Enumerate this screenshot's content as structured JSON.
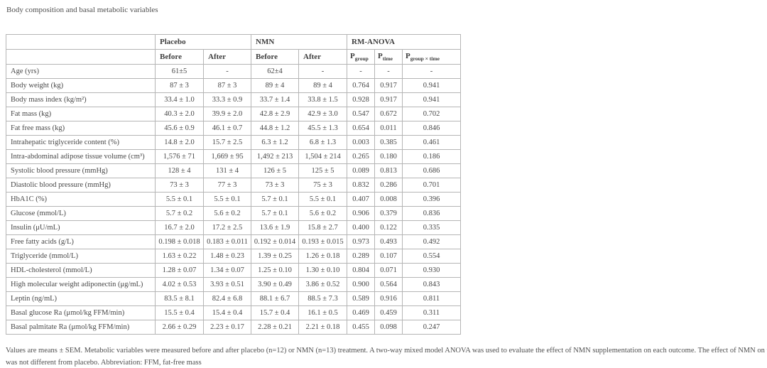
{
  "page": {
    "title": "Body composition and basal metabolic variables",
    "footnote": {
      "line1": "Values are means ± SEM. Metabolic variables were measured before and after placebo (n=12) or NMN (n=13) treatment. A two-way mixed model ANOVA was used to evaluate the effect of NMN supplementation on each outcome. The effect of NMN on these variables",
      "line2": "was not different from placebo. Abbreviation: FFM, fat-free mass"
    }
  },
  "table": {
    "groups": [
      "Placebo",
      "NMN",
      "RM-ANOVA"
    ],
    "sub_cols": [
      "Before",
      "After",
      "Before",
      "After"
    ],
    "p_cols": [
      {
        "main": "P",
        "sub": "group"
      },
      {
        "main": "P",
        "sub": "time"
      },
      {
        "main": "P",
        "sub": "group × time"
      }
    ],
    "rows": [
      {
        "label": "Age (yrs)",
        "values": [
          "61±5",
          "-",
          "62±4",
          "-",
          "-",
          "-",
          "-"
        ]
      },
      {
        "label": "Body weight (kg)",
        "values": [
          "87 ± 3",
          "87 ± 3",
          "89 ± 4",
          "89 ± 4",
          "0.764",
          "0.917",
          "0.941"
        ]
      },
      {
        "label": "Body mass index (kg/m²)",
        "values": [
          "33.4 ± 1.0",
          "33.3 ± 0.9",
          "33.7 ± 1.4",
          "33.8 ± 1.5",
          "0.928",
          "0.917",
          "0.941"
        ]
      },
      {
        "label": "Fat mass (kg)",
        "values": [
          "40.3 ± 2.0",
          "39.9 ± 2.0",
          "42.8 ± 2.9",
          "42.9 ± 3.0",
          "0.547",
          "0.672",
          "0.702"
        ]
      },
      {
        "label": "Fat free mass (kg)",
        "values": [
          "45.6 ± 0.9",
          "46.1 ± 0.7",
          "44.8 ± 1.2",
          "45.5 ± 1.3",
          "0.654",
          "0.011",
          "0.846"
        ]
      },
      {
        "label": "Intrahepatic triglyceride content (%)",
        "values": [
          "14.8 ± 2.0",
          "15.7 ± 2.5",
          "6.3 ± 1.2",
          "6.8 ± 1.3",
          "0.003",
          "0.385",
          "0.461"
        ]
      },
      {
        "label": "Intra-abdominal adipose tissue volume (cm³)",
        "values": [
          "1,576 ± 71",
          "1,669 ± 95",
          "1,492 ± 213",
          "1,504 ± 214",
          "0.265",
          "0.180",
          "0.186"
        ]
      },
      {
        "label": "Systolic blood pressure (mmHg)",
        "values": [
          "128 ± 4",
          "131 ± 4",
          "126 ± 5",
          "125 ± 5",
          "0.089",
          "0.813",
          "0.686"
        ]
      },
      {
        "label": "Diastolic blood pressure (mmHg)",
        "values": [
          "73 ± 3",
          "77 ± 3",
          "73 ± 3",
          "75 ± 3",
          "0.832",
          "0.286",
          "0.701"
        ]
      },
      {
        "label": "HbA1C (%)",
        "values": [
          "5.5 ± 0.1",
          "5.5 ± 0.1",
          "5.7 ± 0.1",
          "5.5 ± 0.1",
          "0.407",
          "0.008",
          "0.396"
        ]
      },
      {
        "label": "Glucose (mmol/L)",
        "values": [
          "5.7 ± 0.2",
          "5.6 ± 0.2",
          "5.7 ± 0.1",
          "5.6 ± 0.2",
          "0.906",
          "0.379",
          "0.836"
        ]
      },
      {
        "label": "Insulin (μU/mL)",
        "values": [
          "16.7 ± 2.0",
          "17.2 ± 2.5",
          "13.6 ± 1.9",
          "15.8 ± 2.7",
          "0.400",
          "0.122",
          "0.335"
        ]
      },
      {
        "label": "Free fatty acids (g/L)",
        "values": [
          "0.198 ± 0.018",
          "0.183 ± 0.011",
          "0.192 ± 0.014",
          "0.193 ± 0.015",
          "0.973",
          "0.493",
          "0.492"
        ]
      },
      {
        "label": "Triglyceride (mmol/L)",
        "values": [
          "1.63 ± 0.22",
          "1.48 ± 0.23",
          "1.39 ± 0.25",
          "1.26 ± 0.18",
          "0.289",
          "0.107",
          "0.554"
        ]
      },
      {
        "label": "HDL-cholesterol (mmol/L)",
        "values": [
          "1.28 ± 0.07",
          "1.34 ± 0.07",
          "1.25 ± 0.10",
          "1.30 ± 0.10",
          "0.804",
          "0.071",
          "0.930"
        ]
      },
      {
        "label": "High molecular weight adiponectin (μg/mL)",
        "values": [
          "4.02 ± 0.53",
          "3.93 ± 0.51",
          "3.90 ± 0.49",
          "3.86 ± 0.52",
          "0.900",
          "0.564",
          "0.843"
        ]
      },
      {
        "label": "Leptin (ng/mL)",
        "values": [
          "83.5 ± 8.1",
          "82.4 ± 6.8",
          "88.1 ± 6.7",
          "88.5 ± 7.3",
          "0.589",
          "0.916",
          "0.811"
        ]
      },
      {
        "label": "Basal glucose Ra (μmol/kg FFM/min)",
        "values": [
          "15.5 ± 0.4",
          "15.4 ± 0.4",
          "15.7 ± 0.4",
          "16.1 ± 0.5",
          "0.469",
          "0.459",
          "0.311"
        ]
      },
      {
        "label": "Basal palmitate Ra (μmol/kg FFM/min)",
        "values": [
          "2.66 ± 0.29",
          "2.23 ± 0.17",
          "2.28 ± 0.21",
          "2.21 ± 0.18",
          "0.455",
          "0.098",
          "0.247"
        ]
      }
    ]
  }
}
